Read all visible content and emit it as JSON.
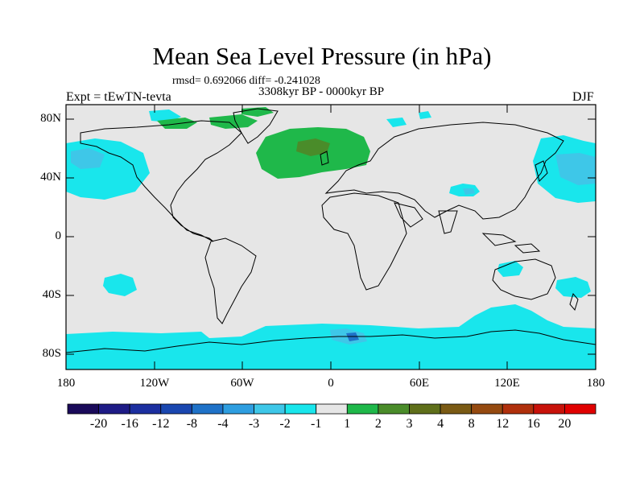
{
  "title": "Mean Sea Level Pressure (in hPa)",
  "stats": "rmsd= 0.692066 diff= -0.241028",
  "expt": "Expt = tEwTN-tevta",
  "period": "3308kyr BP - 0000kyr BP",
  "season": "DJF",
  "axes": {
    "lat_ticks": [
      "80N",
      "40N",
      "0",
      "40S",
      "80S"
    ],
    "lon_ticks": [
      "180",
      "120W",
      "60W",
      "0",
      "60E",
      "120E",
      "180"
    ]
  },
  "colorbar": {
    "labels": [
      "-20",
      "-16",
      "-12",
      "-8",
      "-4",
      "-3",
      "-2",
      "-1",
      "1",
      "2",
      "3",
      "4",
      "8",
      "12",
      "16",
      "20"
    ],
    "colors": [
      "#1a0a5a",
      "#1e1b86",
      "#1c2fa0",
      "#1a47b0",
      "#1f72c8",
      "#2e9ee0",
      "#3ec7e8",
      "#19e6ec",
      "#e6e6e6",
      "#1fb84a",
      "#4a8c2a",
      "#5f6f1a",
      "#7a5a14",
      "#954a10",
      "#b0300c",
      "#c8120a",
      "#e00000"
    ]
  },
  "map": {
    "background_color": "#e6e6e6",
    "projection": "cylindrical-equidistant",
    "lon_range": [
      -180,
      180
    ],
    "lat_range": [
      -90,
      90
    ]
  }
}
